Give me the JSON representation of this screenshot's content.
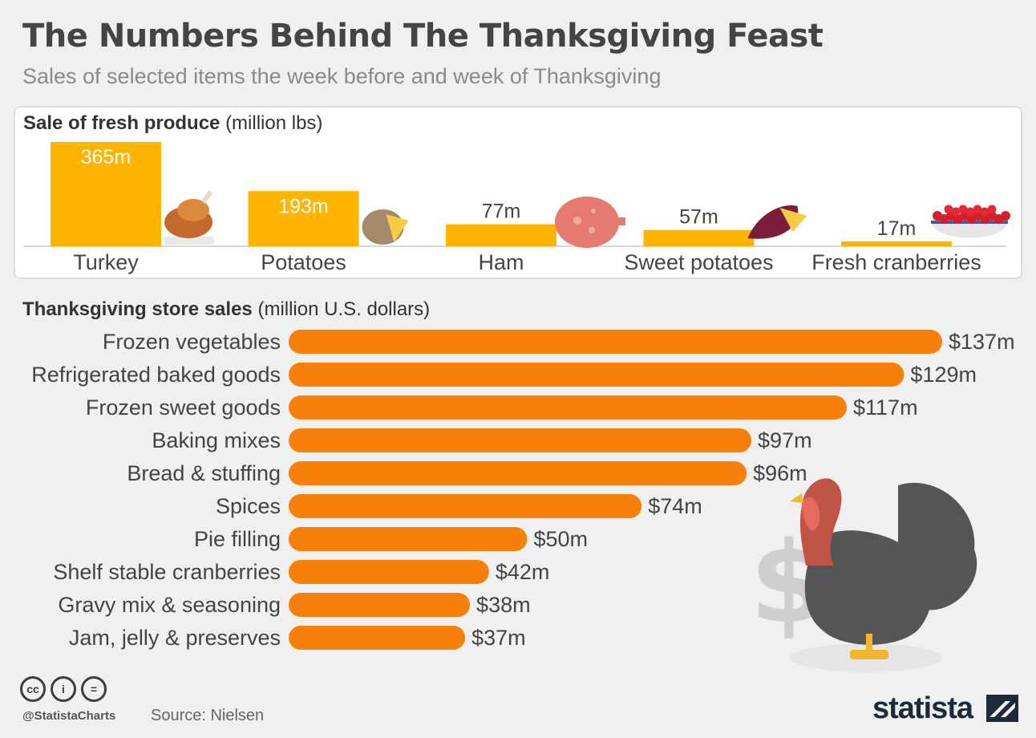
{
  "header": {
    "title": "The Numbers Behind The Thanksgiving Feast",
    "subtitle": "Sales of selected items the week before and week of Thanksgiving"
  },
  "chart_data": [
    {
      "type": "bar",
      "title": "Sale of fresh produce",
      "unit_label": "(million lbs)",
      "categories": [
        "Turkey",
        "Potatoes",
        "Ham",
        "Sweet potatoes",
        "Fresh cranberries"
      ],
      "values": [
        365,
        193,
        77,
        57,
        17
      ],
      "value_labels": [
        "365m",
        "193m",
        "77m",
        "57m",
        "17m"
      ],
      "icons": [
        "roast-turkey-icon",
        "potato-icon",
        "ham-icon",
        "sweet-potato-icon",
        "cranberry-bowl-icon"
      ],
      "color": "#ffb400"
    },
    {
      "type": "bar",
      "orientation": "horizontal",
      "title": "Thanksgiving store sales",
      "unit_label": "(million U.S. dollars)",
      "categories": [
        "Frozen vegetables",
        "Refrigerated baked goods",
        "Frozen sweet goods",
        "Baking mixes",
        "Bread & stuffing",
        "Spices",
        "Pie filling",
        "Shelf stable cranberries",
        "Gravy mix & seasoning",
        "Jam, jelly & preserves"
      ],
      "values": [
        137,
        129,
        117,
        97,
        96,
        74,
        50,
        42,
        38,
        37
      ],
      "value_labels": [
        "$137m",
        "$129m",
        "$117m",
        "$97m",
        "$96m",
        "$74m",
        "$50m",
        "$42m",
        "$38m",
        "$37m"
      ],
      "color": "#f7800a"
    }
  ],
  "footer": {
    "license_icons": [
      "cc",
      "i",
      "="
    ],
    "handle": "@StatistaCharts",
    "source": "Source: Nielsen",
    "brand": "statista"
  },
  "decor": {
    "turkey_icon": "turkey-icon",
    "dollar_icon": "dollar-sign-icon"
  }
}
